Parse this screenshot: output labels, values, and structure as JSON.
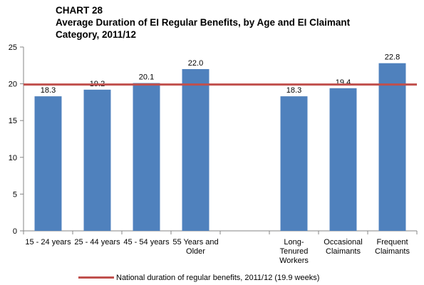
{
  "title_lines": [
    "CHART 28",
    "Average Duration of EI Regular Benefits, by Age and EI Claimant",
    "Category, 2011/12"
  ],
  "chart_data": {
    "type": "bar",
    "categories": [
      [
        "15 - 24 years"
      ],
      [
        "25 - 44 years"
      ],
      [
        "45 - 54 years"
      ],
      [
        "55 Years and",
        "Older"
      ],
      [],
      [
        "Long-",
        "Tenured",
        "Workers"
      ],
      [
        "Occasional",
        "Claimants"
      ],
      [
        "Frequent",
        "Claimants"
      ]
    ],
    "values": [
      18.3,
      19.2,
      20.1,
      22.0,
      null,
      18.3,
      19.4,
      22.8
    ],
    "data_labels": [
      "18.3",
      "19.2",
      "20.1",
      "22.0",
      "",
      "18.3",
      "19.4",
      "22.8"
    ],
    "ylim": [
      0,
      25
    ],
    "yticks": [
      0,
      5,
      10,
      15,
      20,
      25
    ],
    "reference_line": {
      "value": 19.9,
      "label": "National duration of regular benefits, 2011/12 (19.9 weeks)"
    },
    "colors": {
      "bar": "#4F81BD",
      "reference": "#C0504D",
      "axis": "#868686"
    },
    "grid": false,
    "legend_position": "bottom"
  }
}
